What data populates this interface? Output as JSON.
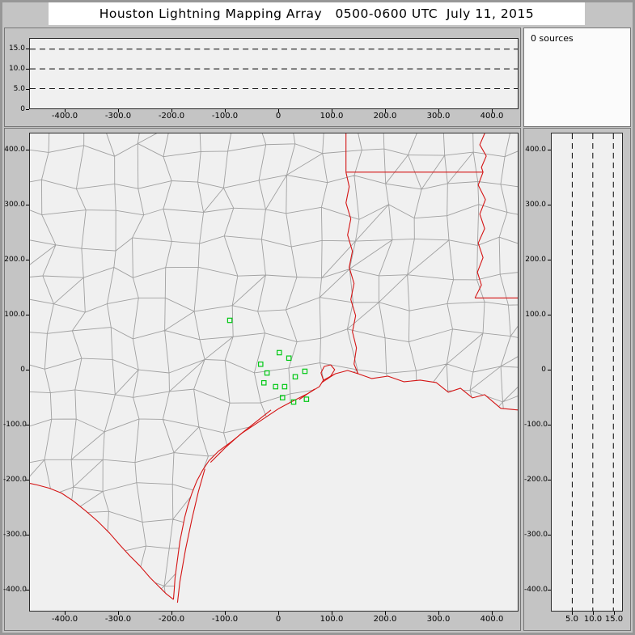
{
  "title": "Houston Lightning Mapping Array   0500-0600 UTC  July 11, 2015",
  "sources_counter": {
    "label": "0 sources",
    "count": 0
  },
  "colors": {
    "window_bg": "#c4c4c4",
    "plot_bg": "#f0f0f0",
    "county_line": "#a0a0a0",
    "state_border": "#d41414",
    "station": "#00c814",
    "dashed_line": "#000000",
    "text": "#000000"
  },
  "chart_data": [
    {
      "type": "scatter",
      "panel": "east-west-distance-vs-altitude",
      "x_tick_labels": [
        "-400.0",
        "-300.0",
        "-200.0",
        "-100.0",
        "0",
        "100.0",
        "200.0",
        "300.0",
        "400.0"
      ],
      "x_tick_values": [
        -400,
        -300,
        -200,
        -100,
        0,
        100,
        200,
        300,
        400
      ],
      "y_tick_labels": [
        "15.0",
        "10.0",
        "5.0",
        "0"
      ],
      "y_tick_values": [
        15,
        10,
        5,
        0
      ],
      "dashed_hlines_km": [
        5,
        10,
        15
      ],
      "x_range_km": [
        -467,
        450
      ],
      "y_range_km": [
        0,
        17.6
      ],
      "points": []
    },
    {
      "type": "scatter",
      "panel": "plan-view-map",
      "x_tick_labels": [
        "-400.0",
        "-300.0",
        "-200.0",
        "-100.0",
        "0",
        "100.0",
        "200.0",
        "300.0",
        "400.0"
      ],
      "x_tick_values": [
        -400,
        -300,
        -200,
        -100,
        0,
        100,
        200,
        300,
        400
      ],
      "y_tick_labels": [
        "400.0",
        "300.0",
        "200.0",
        "100.0",
        "0",
        "-100.0",
        "-200.0",
        "-300.0",
        "-400.0"
      ],
      "y_tick_values": [
        400,
        300,
        200,
        100,
        0,
        -100,
        -200,
        -300,
        -400
      ],
      "x_range_km": [
        -467,
        450
      ],
      "y_range_km": [
        -440,
        431
      ],
      "station_markers_km": [
        [
          -91,
          90
        ],
        [
          -33,
          10
        ],
        [
          2,
          31
        ],
        [
          20,
          21
        ],
        [
          -21,
          -6
        ],
        [
          -27,
          -24
        ],
        [
          -5,
          -31
        ],
        [
          12,
          -31
        ],
        [
          32,
          -13
        ],
        [
          50,
          -3
        ],
        [
          8,
          -51
        ],
        [
          29,
          -59
        ],
        [
          53,
          -54
        ]
      ],
      "points": []
    },
    {
      "type": "scatter",
      "panel": "altitude-vs-north-south-distance",
      "x_tick_labels": [
        "5.0",
        "10.0",
        "15.0"
      ],
      "x_tick_values": [
        5,
        10,
        15
      ],
      "y_tick_labels": [
        "400.0",
        "300.0",
        "200.0",
        "100.0",
        "0",
        "-100.0",
        "-200.0",
        "-300.0",
        "-400.0"
      ],
      "y_tick_values": [
        400,
        300,
        200,
        100,
        0,
        -100,
        -200,
        -300,
        -400
      ],
      "dashed_vlines_km": [
        5,
        10,
        15
      ],
      "x_range_km": [
        0,
        17.1
      ],
      "y_range_km": [
        -440,
        431
      ],
      "points": []
    }
  ]
}
